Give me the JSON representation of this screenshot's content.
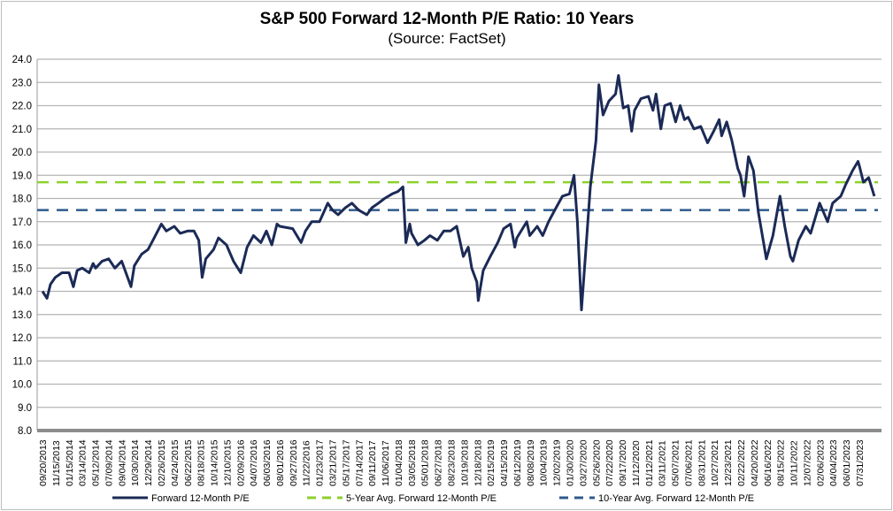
{
  "chart_data": {
    "type": "line",
    "title": "S&P 500 Forward 12-Month P/E Ratio: 10 Years",
    "subtitle": "(Source: FactSet)",
    "xlabel": "",
    "ylabel": "",
    "ylim": [
      8.0,
      24.0
    ],
    "yticks": [
      "24.0",
      "23.0",
      "22.0",
      "21.0",
      "20.0",
      "19.0",
      "18.0",
      "17.0",
      "16.0",
      "15.0",
      "14.0",
      "13.0",
      "12.0",
      "11.0",
      "10.0",
      "9.0",
      "8.0"
    ],
    "xticks": [
      "09/20/2013",
      "11/15/2013",
      "01/15/2014",
      "03/14/2014",
      "05/12/2014",
      "07/09/2014",
      "09/04/2014",
      "10/30/2014",
      "12/29/2014",
      "02/26/2015",
      "04/24/2015",
      "06/22/2015",
      "08/18/2015",
      "10/14/2015",
      "12/10/2015",
      "02/09/2016",
      "04/07/2016",
      "06/03/2016",
      "08/01/2016",
      "09/27/2016",
      "11/22/2016",
      "01/23/2017",
      "03/21/2017",
      "05/17/2017",
      "07/14/2017",
      "09/11/2017",
      "11/06/2017",
      "01/04/2018",
      "03/05/2018",
      "05/01/2018",
      "06/27/2018",
      "08/23/2018",
      "10/19/2018",
      "12/18/2018",
      "02/15/2019",
      "04/15/2019",
      "06/12/2019",
      "08/08/2019",
      "10/04/2019",
      "12/02/2019",
      "01/30/2020",
      "03/27/2020",
      "05/26/2020",
      "07/22/2020",
      "09/17/2020",
      "11/12/2020",
      "01/12/2021",
      "03/11/2021",
      "05/07/2021",
      "07/06/2021",
      "08/31/2021",
      "10/27/2021",
      "12/23/2021",
      "02/22/2022",
      "04/20/2022",
      "06/16/2022",
      "08/15/2022",
      "10/11/2022",
      "12/07/2022",
      "02/06/2023",
      "04/04/2023",
      "06/01/2023",
      "07/31/2023"
    ],
    "grid": true,
    "legend_position": "bottom",
    "series": [
      {
        "name": "Forward 12-Month P/E",
        "color": "#1b2a56",
        "style": "solid",
        "points": [
          [
            "09/20/2013",
            14.0
          ],
          [
            "10/10/2013",
            13.7
          ],
          [
            "10/25/2013",
            14.3
          ],
          [
            "11/15/2013",
            14.6
          ],
          [
            "12/15/2013",
            14.8
          ],
          [
            "01/15/2014",
            14.8
          ],
          [
            "02/03/2014",
            14.2
          ],
          [
            "02/20/2014",
            14.9
          ],
          [
            "03/14/2014",
            15.0
          ],
          [
            "04/14/2014",
            14.8
          ],
          [
            "05/01/2014",
            15.2
          ],
          [
            "05/12/2014",
            15.0
          ],
          [
            "06/10/2014",
            15.3
          ],
          [
            "07/09/2014",
            15.4
          ],
          [
            "08/05/2014",
            15.0
          ],
          [
            "09/04/2014",
            15.3
          ],
          [
            "10/15/2014",
            14.2
          ],
          [
            "10/30/2014",
            15.1
          ],
          [
            "12/01/2014",
            15.6
          ],
          [
            "12/29/2014",
            15.8
          ],
          [
            "01/20/2015",
            16.2
          ],
          [
            "02/26/2015",
            16.9
          ],
          [
            "03/20/2015",
            16.6
          ],
          [
            "04/24/2015",
            16.8
          ],
          [
            "05/20/2015",
            16.5
          ],
          [
            "06/22/2015",
            16.6
          ],
          [
            "07/20/2015",
            16.6
          ],
          [
            "08/10/2015",
            16.2
          ],
          [
            "08/25/2015",
            14.6
          ],
          [
            "09/10/2015",
            15.4
          ],
          [
            "10/14/2015",
            15.8
          ],
          [
            "11/05/2015",
            16.3
          ],
          [
            "12/10/2015",
            16.0
          ],
          [
            "01/10/2016",
            15.3
          ],
          [
            "02/11/2016",
            14.8
          ],
          [
            "03/10/2016",
            15.9
          ],
          [
            "04/07/2016",
            16.4
          ],
          [
            "05/10/2016",
            16.1
          ],
          [
            "06/03/2016",
            16.6
          ],
          [
            "06/27/2016",
            16.0
          ],
          [
            "07/20/2016",
            16.9
          ],
          [
            "08/01/2016",
            16.8
          ],
          [
            "09/27/2016",
            16.7
          ],
          [
            "11/03/2016",
            16.1
          ],
          [
            "11/22/2016",
            16.6
          ],
          [
            "12/20/2016",
            17.0
          ],
          [
            "01/23/2017",
            17.0
          ],
          [
            "03/01/2017",
            17.8
          ],
          [
            "03/21/2017",
            17.5
          ],
          [
            "04/15/2017",
            17.3
          ],
          [
            "05/17/2017",
            17.6
          ],
          [
            "06/15/2017",
            17.8
          ],
          [
            "07/14/2017",
            17.5
          ],
          [
            "08/20/2017",
            17.3
          ],
          [
            "09/11/2017",
            17.6
          ],
          [
            "10/10/2017",
            17.8
          ],
          [
            "11/06/2017",
            18.0
          ],
          [
            "12/10/2017",
            18.2
          ],
          [
            "01/04/2018",
            18.3
          ],
          [
            "01/26/2018",
            18.5
          ],
          [
            "02/08/2018",
            16.1
          ],
          [
            "02/25/2018",
            16.9
          ],
          [
            "03/05/2018",
            16.5
          ],
          [
            "04/02/2018",
            16.0
          ],
          [
            "05/01/2018",
            16.2
          ],
          [
            "05/25/2018",
            16.4
          ],
          [
            "06/27/2018",
            16.2
          ],
          [
            "07/25/2018",
            16.6
          ],
          [
            "08/23/2018",
            16.6
          ],
          [
            "09/20/2018",
            16.8
          ],
          [
            "10/19/2018",
            15.5
          ],
          [
            "11/10/2018",
            15.9
          ],
          [
            "11/25/2018",
            15.0
          ],
          [
            "12/18/2018",
            14.4
          ],
          [
            "12/24/2018",
            13.6
          ],
          [
            "01/15/2019",
            14.9
          ],
          [
            "02/15/2019",
            15.5
          ],
          [
            "03/20/2019",
            16.1
          ],
          [
            "04/15/2019",
            16.7
          ],
          [
            "05/15/2019",
            16.9
          ],
          [
            "06/03/2019",
            15.9
          ],
          [
            "06/12/2019",
            16.3
          ],
          [
            "07/26/2019",
            17.0
          ],
          [
            "08/08/2019",
            16.4
          ],
          [
            "09/10/2019",
            16.8
          ],
          [
            "10/04/2019",
            16.4
          ],
          [
            "10/30/2019",
            17.0
          ],
          [
            "12/02/2019",
            17.6
          ],
          [
            "12/30/2019",
            18.1
          ],
          [
            "01/30/2020",
            18.2
          ],
          [
            "02/19/2020",
            19.0
          ],
          [
            "03/05/2020",
            17.0
          ],
          [
            "03/23/2020",
            13.2
          ],
          [
            "04/10/2020",
            15.6
          ],
          [
            "05/01/2020",
            18.5
          ],
          [
            "05/26/2020",
            20.5
          ],
          [
            "06/08/2020",
            22.9
          ],
          [
            "06/26/2020",
            21.6
          ],
          [
            "07/22/2020",
            22.2
          ],
          [
            "08/20/2020",
            22.5
          ],
          [
            "09/02/2020",
            23.3
          ],
          [
            "09/23/2020",
            21.9
          ],
          [
            "10/15/2020",
            22.0
          ],
          [
            "10/30/2020",
            20.9
          ],
          [
            "11/12/2020",
            21.8
          ],
          [
            "12/10/2020",
            22.3
          ],
          [
            "01/12/2021",
            22.4
          ],
          [
            "02/01/2021",
            21.8
          ],
          [
            "02/15/2021",
            22.5
          ],
          [
            "03/08/2021",
            21.0
          ],
          [
            "03/25/2021",
            22.0
          ],
          [
            "04/20/2021",
            22.1
          ],
          [
            "05/12/2021",
            21.3
          ],
          [
            "06/01/2021",
            22.0
          ],
          [
            "06/20/2021",
            21.4
          ],
          [
            "07/06/2021",
            21.5
          ],
          [
            "08/01/2021",
            21.0
          ],
          [
            "08/31/2021",
            21.1
          ],
          [
            "09/30/2021",
            20.4
          ],
          [
            "10/27/2021",
            20.9
          ],
          [
            "11/20/2021",
            21.4
          ],
          [
            "12/01/2021",
            20.7
          ],
          [
            "12/23/2021",
            21.3
          ],
          [
            "01/15/2022",
            20.5
          ],
          [
            "02/10/2022",
            19.3
          ],
          [
            "02/22/2022",
            19.0
          ],
          [
            "03/10/2022",
            18.1
          ],
          [
            "03/29/2022",
            19.8
          ],
          [
            "04/20/2022",
            19.2
          ],
          [
            "05/12/2022",
            17.4
          ],
          [
            "06/16/2022",
            15.4
          ],
          [
            "07/15/2022",
            16.4
          ],
          [
            "08/15/2022",
            18.1
          ],
          [
            "09/05/2022",
            16.8
          ],
          [
            "09/30/2022",
            15.5
          ],
          [
            "10/11/2022",
            15.3
          ],
          [
            "11/05/2022",
            16.2
          ],
          [
            "12/07/2022",
            16.8
          ],
          [
            "12/28/2022",
            16.5
          ],
          [
            "02/06/2023",
            17.8
          ],
          [
            "03/13/2023",
            17.0
          ],
          [
            "04/04/2023",
            17.8
          ],
          [
            "05/10/2023",
            18.1
          ],
          [
            "06/01/2023",
            18.6
          ],
          [
            "07/01/2023",
            19.2
          ],
          [
            "07/25/2023",
            19.6
          ],
          [
            "07/31/2023",
            19.4
          ],
          [
            "08/18/2023",
            18.7
          ],
          [
            "09/10/2023",
            18.9
          ],
          [
            "10/05/2023",
            18.1
          ]
        ]
      },
      {
        "name": "5-Year Avg. Forward 12-Month P/E",
        "color": "#8dd12b",
        "style": "dashed",
        "value": 18.7
      },
      {
        "name": "10-Year Avg. Forward 12-Month P/E",
        "color": "#2f5b8c",
        "style": "dashed",
        "value": 17.5
      }
    ]
  }
}
